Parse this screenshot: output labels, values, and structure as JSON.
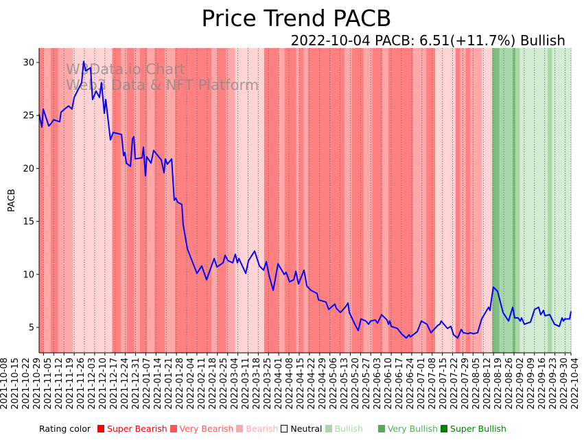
{
  "chart_data": {
    "type": "line",
    "title": "Price Trend PACB",
    "subtitle": "2022-10-04 PACB: 6.51(+11.7%) Bullish",
    "ylabel": "PACB",
    "xlabel": "",
    "start_date": "2021-10-05",
    "end_date": "2022-10-04",
    "ylim": [
      2.6,
      31.36
    ],
    "yticks": [
      5,
      10,
      15,
      20,
      25,
      30
    ],
    "xtick_labels": [
      "2021-10-08",
      "2021-10-15",
      "2021-10-22",
      "2021-10-29",
      "2021-11-05",
      "2021-11-12",
      "2021-11-19",
      "2021-11-26",
      "2021-12-03",
      "2021-12-10",
      "2021-12-17",
      "2021-12-24",
      "2021-12-31",
      "2022-01-07",
      "2022-01-14",
      "2022-01-21",
      "2022-01-28",
      "2022-02-04",
      "2022-02-11",
      "2022-02-18",
      "2022-02-25",
      "2022-03-04",
      "2022-03-11",
      "2022-03-18",
      "2022-03-25",
      "2022-04-01",
      "2022-04-08",
      "2022-04-15",
      "2022-04-22",
      "2022-04-29",
      "2022-05-06",
      "2022-05-13",
      "2022-05-20",
      "2022-05-27",
      "2022-06-03",
      "2022-06-10",
      "2022-06-17",
      "2022-06-24",
      "2022-07-01",
      "2022-07-08",
      "2022-07-15",
      "2022-07-22",
      "2022-07-29",
      "2022-08-05",
      "2022-08-12",
      "2022-08-19",
      "2022-08-26",
      "2022-09-02",
      "2022-09-09",
      "2022-09-16",
      "2022-09-23",
      "2022-09-30",
      "2022-10-04"
    ],
    "grid": "vertical dotted at x ticks",
    "series": [
      {
        "name": "PACB",
        "color": "#0000ff",
        "x_days_since_start": [
          0,
          1.9,
          2.8,
          6.6,
          8.5,
          9.9,
          14.1,
          15,
          17.4,
          20.2,
          22.5,
          24,
          29.1,
          30.5,
          31.9,
          35.2,
          36.6,
          39,
          41.3,
          42.7,
          44.6,
          45.6,
          48.8,
          50.7,
          56.4,
          57.8,
          58.7,
          59.7,
          62.5,
          63.9,
          64.8,
          65.8,
          70.5,
          71.4,
          72.8,
          73.7,
          76.6,
          78.4,
          83.6,
          85.5,
          86.4,
          87.8,
          90.7,
          92.5,
          93.5,
          94.9,
          97.7,
          98.6,
          101.5,
          108,
          111.3,
          114.6,
          119.8,
          121.7,
          125.9,
          127.3,
          129.2,
          132.5,
          134.3,
          135.7,
          136.7,
          141.4,
          143.3,
          147.5,
          150.8,
          153.6,
          155.5,
          157.4,
          160.2,
          163.5,
          167.7,
          169.1,
          171.4,
          174.3,
          175.7,
          177.5,
          181.3,
          183.2,
          186,
          190.2,
          191.2,
          196.3,
          198.2,
          202.4,
          203.4,
          206.2,
          209.5,
          211.4,
          212.3,
          216.1,
          218.4,
          220.3,
          223.6,
          225.5,
          226.9,
          230.1,
          231.6,
          234.4,
          238.1,
          239.1,
          240,
          241,
          245.2,
          248,
          251.3,
          253.2,
          254.1,
          258.8,
          261.6,
          265.4,
          268.2,
          272.9,
          274.3,
          275.2,
          279.5,
          281.8,
          283.7,
          286.5,
          288.9,
          290.3,
          293.6,
          295,
          297.3,
          300.1,
          302.9,
          307.6,
          308.6,
          309.5,
          310.9,
          313.8,
          317.5,
          321.3,
          324.1,
          325.5,
          327.8,
          329.3,
          330.2,
          332.1,
          336.3,
          339.1,
          341.9,
          343.3,
          345.2,
          346.2,
          349.5,
          352.7,
          356,
          357.9,
          358.9,
          359.8,
          363.1,
          364
        ],
        "values": [
          25.1,
          23.9,
          25.6,
          24.0,
          24.3,
          24.6,
          24.4,
          25.3,
          25.6,
          25.9,
          25.6,
          26.7,
          28.1,
          30.1,
          29.2,
          29.5,
          26.5,
          27.3,
          26.7,
          28.1,
          25.2,
          26.5,
          22.7,
          23.4,
          23.2,
          21.2,
          21.5,
          20.5,
          20.2,
          22.8,
          23.0,
          20.9,
          21.0,
          22.0,
          19.3,
          21.1,
          20.5,
          21.7,
          20.8,
          19.6,
          20.9,
          20.4,
          20.9,
          17.0,
          17.2,
          16.8,
          16.6,
          14.7,
          12.4,
          10.1,
          10.8,
          9.5,
          11.5,
          10.7,
          11.1,
          11.8,
          11.3,
          11.1,
          11.9,
          11.1,
          11.5,
          10.1,
          11.3,
          12.2,
          10.8,
          10.4,
          11.2,
          9.9,
          8.5,
          11.0,
          10.0,
          10.2,
          9.3,
          9.5,
          10.3,
          9.1,
          10.4,
          8.9,
          8.5,
          8.2,
          7.6,
          7.4,
          6.7,
          7.2,
          6.8,
          6.4,
          6.9,
          7.3,
          6.4,
          5.3,
          4.7,
          5.8,
          5.6,
          5.3,
          5.6,
          5.7,
          5.4,
          6.2,
          5.7,
          5.3,
          5.6,
          5.1,
          4.9,
          4.4,
          4.0,
          4.3,
          4.1,
          4.6,
          5.6,
          5.3,
          4.5,
          5.2,
          5.3,
          5.6,
          4.9,
          5.1,
          4.3,
          4.0,
          4.8,
          4.5,
          4.4,
          4.5,
          4.4,
          4.5,
          5.8,
          6.9,
          6.6,
          7.6,
          8.8,
          8.4,
          6.4,
          5.6,
          6.9,
          5.9,
          5.9,
          5.6,
          5.9,
          5.3,
          5.5,
          6.7,
          6.9,
          6.2,
          6.6,
          6.1,
          6.2,
          5.3,
          5.1,
          5.9,
          5.6,
          5.8,
          5.8,
          6.51
        ]
      }
    ],
    "rating_bands": [
      [
        "2021-10-05",
        "2021-10-08",
        -2
      ],
      [
        "2021-10-08",
        "2021-10-13",
        -1
      ],
      [
        "2021-10-13",
        "2021-10-18",
        -2
      ],
      [
        "2021-10-18",
        "2021-10-28",
        -1
      ],
      [
        "2021-10-28",
        "2021-11-24",
        -0.5
      ],
      [
        "2021-11-24",
        "2021-11-30",
        -2
      ],
      [
        "2021-11-30",
        "2021-12-04",
        -1
      ],
      [
        "2021-12-04",
        "2021-12-09",
        -2
      ],
      [
        "2021-12-09",
        "2021-12-13",
        -1
      ],
      [
        "2021-12-13",
        "2021-12-18",
        -2
      ],
      [
        "2021-12-18",
        "2021-12-23",
        -1
      ],
      [
        "2021-12-23",
        "2021-12-30",
        -2
      ],
      [
        "2021-12-30",
        "2022-01-06",
        -1
      ],
      [
        "2022-01-06",
        "2022-01-31",
        -2
      ],
      [
        "2022-01-31",
        "2022-02-04",
        -1
      ],
      [
        "2022-02-04",
        "2022-02-10",
        -2
      ],
      [
        "2022-02-10",
        "2022-02-16",
        -1
      ],
      [
        "2022-02-16",
        "2022-03-08",
        -0.5
      ],
      [
        "2022-03-08",
        "2022-03-18",
        -2
      ],
      [
        "2022-03-18",
        "2022-03-22",
        -1
      ],
      [
        "2022-03-22",
        "2022-03-30",
        -2
      ],
      [
        "2022-03-30",
        "2022-04-01",
        -1
      ],
      [
        "2022-04-01",
        "2022-04-04",
        -2
      ],
      [
        "2022-04-04",
        "2022-04-07",
        -1
      ],
      [
        "2022-04-07",
        "2022-05-02",
        -2
      ],
      [
        "2022-05-02",
        "2022-05-07",
        -1
      ],
      [
        "2022-05-07",
        "2022-05-15",
        -2
      ],
      [
        "2022-05-15",
        "2022-05-21",
        -1
      ],
      [
        "2022-05-21",
        "2022-05-28",
        -2
      ],
      [
        "2022-05-28",
        "2022-06-01",
        -1
      ],
      [
        "2022-06-01",
        "2022-06-18",
        -2
      ],
      [
        "2022-06-18",
        "2022-06-27",
        -1
      ],
      [
        "2022-06-27",
        "2022-07-03",
        -2
      ],
      [
        "2022-07-03",
        "2022-07-17",
        -0.5
      ],
      [
        "2022-07-17",
        "2022-07-20",
        -2
      ],
      [
        "2022-07-20",
        "2022-07-24",
        -1
      ],
      [
        "2022-07-24",
        "2022-07-27",
        -2
      ],
      [
        "2022-07-27",
        "2022-08-04",
        -1
      ],
      [
        "2022-08-04",
        "2022-08-11",
        -0.5
      ],
      [
        "2022-08-11",
        "2022-08-16",
        2
      ],
      [
        "2022-08-16",
        "2022-08-25",
        1.5
      ],
      [
        "2022-08-25",
        "2022-08-27",
        2
      ],
      [
        "2022-08-27",
        "2022-08-30",
        1.5
      ],
      [
        "2022-08-30",
        "2022-09-18",
        1
      ],
      [
        "2022-09-18",
        "2022-09-21",
        1.5
      ],
      [
        "2022-09-21",
        "2022-10-04",
        1
      ]
    ],
    "band_colors": {
      "-2": "#ff8080",
      "-1": "#ffa8a8",
      "-0.5": "#ffd4d4",
      "1": "#d4ecd4",
      "1.5": "#a8d8a8",
      "2": "#80c080"
    },
    "legend": {
      "title": "Rating color",
      "placement": "bottom",
      "items": [
        {
          "label": "Super Bearish",
          "color": "#ff0000"
        },
        {
          "label": "Very Bearish",
          "color": "#ff5555"
        },
        {
          "label": "Bearish",
          "color": "#ffaaaa"
        },
        {
          "label": "Neutral",
          "color": "#ffffff",
          "text_color": "#000000"
        },
        {
          "label": "Bullish",
          "color": "#aad4aa"
        },
        {
          "label": "Very Bullish",
          "color": "#55aa55"
        },
        {
          "label": "Super Bullish",
          "color": "#008000"
        }
      ]
    }
  },
  "watermark": {
    "line1": "W3Data.io Chart",
    "line2": "Web3 Data & NFT Platform"
  }
}
